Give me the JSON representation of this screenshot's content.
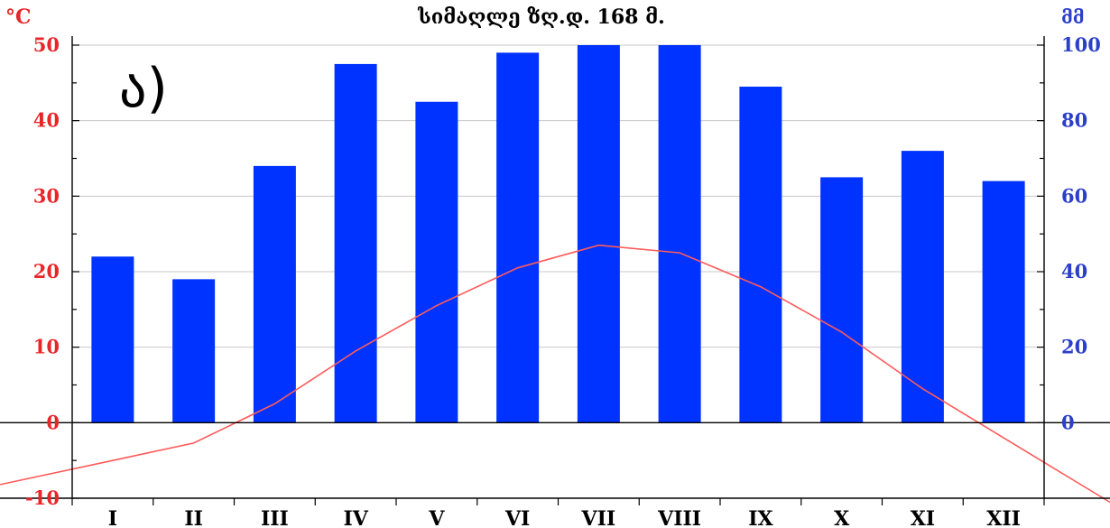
{
  "chart_data": {
    "type": "bar",
    "title": "სიმაღლე ზღ.დ. 168 მ.",
    "panel_label": "ა)",
    "left_unit": "°C",
    "right_unit": "მმ",
    "categories": [
      "I",
      "II",
      "III",
      "IV",
      "V",
      "VI",
      "VII",
      "VIII",
      "IX",
      "X",
      "XI",
      "XII"
    ],
    "left_axis": {
      "ylim": [
        -10,
        50
      ],
      "ticks": [
        -10,
        0,
        10,
        20,
        30,
        40,
        50
      ],
      "color": "#e8262a"
    },
    "right_axis": {
      "ylim": [
        0,
        100
      ],
      "ticks": [
        0,
        20,
        40,
        60,
        80,
        100
      ],
      "color": "#2b3fc8"
    },
    "grid": true,
    "series": [
      {
        "type": "bar",
        "axis": "right",
        "color": "#0033ff",
        "values": [
          44,
          38,
          68,
          95,
          85,
          98,
          100,
          100,
          89,
          65,
          72,
          64
        ]
      },
      {
        "type": "line",
        "axis": "left",
        "color": "#ff5a5a",
        "values": [
          -5,
          -2.7,
          2.5,
          9.5,
          15.5,
          20.5,
          23.5,
          22.5,
          18,
          12,
          4.5,
          -2
        ]
      }
    ]
  }
}
